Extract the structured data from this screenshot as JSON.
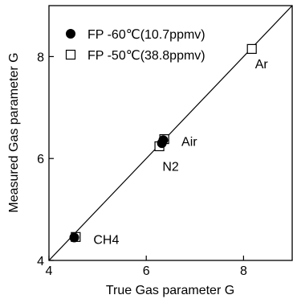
{
  "chart_data": {
    "type": "scatter",
    "xlabel": "True Gas parameter G",
    "ylabel": "Measured Gas parameter G",
    "xlim": [
      4,
      9
    ],
    "ylim": [
      4,
      9
    ],
    "x_ticks": [
      "4",
      "6",
      "8"
    ],
    "y_ticks": [
      "4",
      "6",
      "8"
    ],
    "legend_position": "top-left",
    "reference_line": {
      "from": [
        4,
        4
      ],
      "to": [
        9,
        9
      ]
    },
    "series": [
      {
        "name": "FP -60℃(10.7ppmv)",
        "marker": "filled-circle",
        "points": [
          {
            "gas": "CH4",
            "x": 4.52,
            "y": 4.45
          },
          {
            "gas": "N2",
            "x": 6.32,
            "y": 6.3
          },
          {
            "gas": "Air",
            "x": 6.35,
            "y": 6.36
          }
        ]
      },
      {
        "name": "FP -50℃(38.8ppmv)",
        "marker": "open-square",
        "points": [
          {
            "gas": "CH4",
            "x": 4.55,
            "y": 4.46
          },
          {
            "gas": "N2",
            "x": 6.27,
            "y": 6.24
          },
          {
            "gas": "Air",
            "x": 6.37,
            "y": 6.38
          },
          {
            "gas": "Ar",
            "x": 8.17,
            "y": 8.15
          }
        ]
      }
    ],
    "point_labels": [
      {
        "text": "CH4",
        "x": 4.55,
        "y": 4.45,
        "anchor": "right"
      },
      {
        "text": "N2",
        "x": 6.3,
        "y": 6.26,
        "anchor": "below"
      },
      {
        "text": "Air",
        "x": 6.36,
        "y": 6.37,
        "anchor": "right"
      },
      {
        "text": "Ar",
        "x": 8.17,
        "y": 8.15,
        "anchor": "below-right"
      }
    ]
  },
  "colors": {
    "ink": "#000000",
    "background": "#ffffff"
  }
}
